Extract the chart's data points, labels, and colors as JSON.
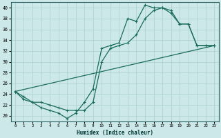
{
  "xlabel": "Humidex (Indice chaleur)",
  "bg_color": "#cce8e8",
  "grid_color": "#aacfcf",
  "line_color": "#1a6b5a",
  "xlim": [
    -0.5,
    23.5
  ],
  "ylim": [
    19,
    41
  ],
  "yticks": [
    20,
    22,
    24,
    26,
    28,
    30,
    32,
    34,
    36,
    38,
    40
  ],
  "xticks": [
    0,
    1,
    2,
    3,
    4,
    5,
    6,
    7,
    8,
    9,
    10,
    11,
    12,
    13,
    14,
    15,
    16,
    17,
    18,
    19,
    20,
    21,
    22,
    23
  ],
  "line1_x": [
    0,
    1,
    2,
    3,
    4,
    5,
    6,
    7,
    8,
    9,
    10,
    11,
    12,
    13,
    14,
    15,
    16,
    17,
    18,
    19,
    20,
    21,
    22,
    23
  ],
  "line1_y": [
    24.5,
    23.0,
    22.5,
    21.5,
    21.0,
    20.5,
    19.5,
    20.5,
    22.5,
    25.0,
    32.5,
    33.0,
    33.5,
    38.0,
    37.5,
    40.5,
    40.0,
    40.0,
    39.0,
    37.0,
    37.0,
    33.0,
    33.0,
    33.0
  ],
  "line2_x": [
    0,
    1,
    2,
    3,
    4,
    5,
    6,
    7,
    8,
    9,
    10,
    11,
    12,
    13,
    14,
    15,
    16,
    17,
    18,
    19,
    20,
    21,
    22,
    23
  ],
  "line2_y": [
    24.5,
    23.5,
    22.5,
    22.5,
    22.0,
    21.5,
    21.0,
    21.0,
    21.0,
    22.5,
    30.0,
    32.5,
    33.0,
    33.5,
    35.0,
    38.0,
    39.5,
    40.0,
    39.5,
    37.0,
    37.0,
    33.0,
    33.0,
    33.0
  ],
  "line3_x": [
    0,
    23
  ],
  "line3_y": [
    24.5,
    33.0
  ]
}
